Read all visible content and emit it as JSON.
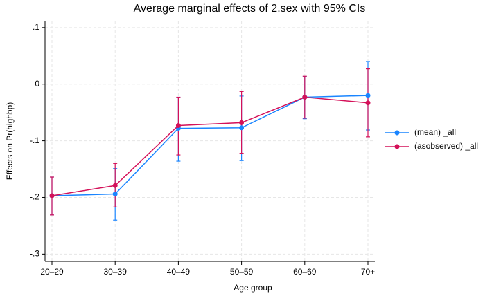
{
  "chart_data": {
    "type": "line",
    "title": "Average marginal effects of 2.sex with 95% CIs",
    "x_label": "Age group",
    "y_label": "Effects on Pr(highbp)",
    "categories": [
      "20–29",
      "30–39",
      "40–49",
      "50–59",
      "60–69",
      "70+"
    ],
    "series": [
      {
        "name": "(mean) _all",
        "color": "#1a85ff",
        "values": [
          -0.197,
          -0.194,
          -0.078,
          -0.077,
          -0.023,
          -0.02
        ],
        "ci_lower": [
          -0.231,
          -0.24,
          -0.136,
          -0.135,
          -0.061,
          -0.081
        ],
        "ci_upper": [
          -0.164,
          -0.149,
          -0.023,
          -0.021,
          0.013,
          0.04
        ]
      },
      {
        "name": "(asobserved) _all",
        "color": "#d41159",
        "values": [
          -0.197,
          -0.179,
          -0.073,
          -0.068,
          -0.023,
          -0.033
        ],
        "ci_lower": [
          -0.231,
          -0.217,
          -0.125,
          -0.122,
          -0.06,
          -0.093
        ],
        "ci_upper": [
          -0.164,
          -0.14,
          -0.023,
          -0.013,
          0.014,
          0.027
        ]
      }
    ],
    "ylim": [
      -0.313,
      0.112
    ],
    "yticks": [
      {
        "value": 0.1,
        "label": ".1"
      },
      0,
      {
        "value": -0.1,
        "label": "-.1"
      },
      {
        "value": -0.2,
        "label": "-.2"
      },
      {
        "value": -0.3,
        "label": "-.3"
      }
    ],
    "grid": true,
    "legend": "right"
  }
}
